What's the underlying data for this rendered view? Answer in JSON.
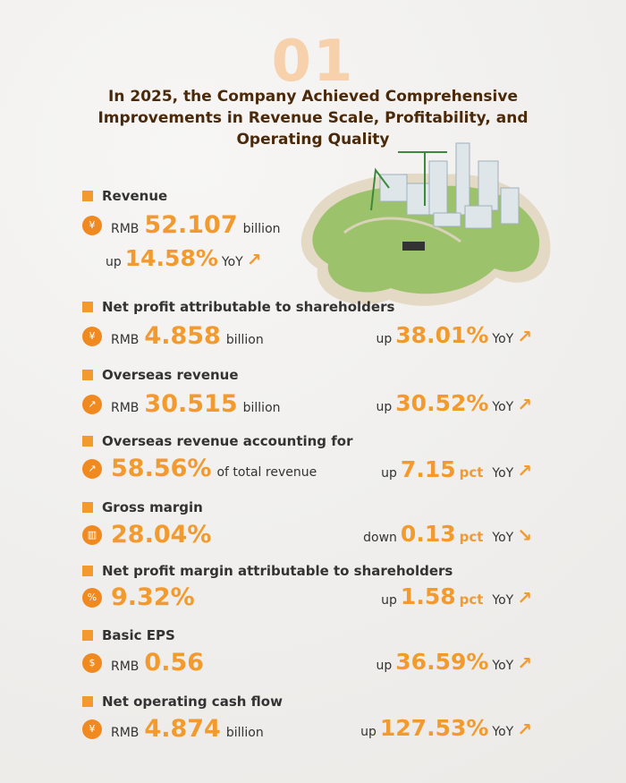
{
  "section_number": "01",
  "title": "In 2025, the Company Achieved Comprehensive Improvements in Revenue Scale, Profitability, and Operating Quality",
  "accent_color": "#f39a2e",
  "metrics": [
    {
      "label": "Revenue",
      "prefix": "RMB",
      "value": "52.107",
      "suffix": "billion",
      "change_dir": "up",
      "change": "14.58%",
      "unit": "",
      "yoy": "YoY",
      "icon": "money-bag-icon"
    },
    {
      "label": "Net profit attributable to shareholders",
      "prefix": "RMB",
      "value": "4.858",
      "suffix": "billion",
      "change_dir": "up",
      "change": "38.01%",
      "unit": "",
      "yoy": "YoY",
      "icon": "money-bag-icon"
    },
    {
      "label": "Overseas revenue",
      "prefix": "RMB",
      "value": "30.515",
      "suffix": "billion",
      "change_dir": "up",
      "change": "30.52%",
      "unit": "",
      "yoy": "YoY",
      "icon": "growth-chart-icon"
    },
    {
      "label": "Overseas revenue accounting for",
      "prefix": "",
      "value": "58.56%",
      "suffix": "of total revenue",
      "change_dir": "up",
      "change": "7.15",
      "unit": "pct",
      "yoy": "YoY",
      "icon": "growth-chart-icon"
    },
    {
      "label": "Gross margin",
      "prefix": "",
      "value": "28.04%",
      "suffix": "",
      "change_dir": "down",
      "change": "0.13",
      "unit": "pct",
      "yoy": "YoY",
      "icon": "bar-chart-icon"
    },
    {
      "label": "Net profit margin attributable to shareholders",
      "prefix": "",
      "value": "9.32%",
      "suffix": "",
      "change_dir": "up",
      "change": "1.58",
      "unit": "pct",
      "yoy": "YoY",
      "icon": "percent-chart-icon"
    },
    {
      "label": "Basic EPS",
      "prefix": "RMB",
      "value": "0.56",
      "suffix": "",
      "change_dir": "up",
      "change": "36.59%",
      "unit": "",
      "yoy": "YoY",
      "icon": "coins-icon"
    },
    {
      "label": "Net operating cash flow",
      "prefix": "RMB",
      "value": "4.874",
      "suffix": "billion",
      "change_dir": "up",
      "change": "127.53%",
      "unit": "",
      "yoy": "YoY",
      "icon": "cash-flow-icon"
    }
  ]
}
